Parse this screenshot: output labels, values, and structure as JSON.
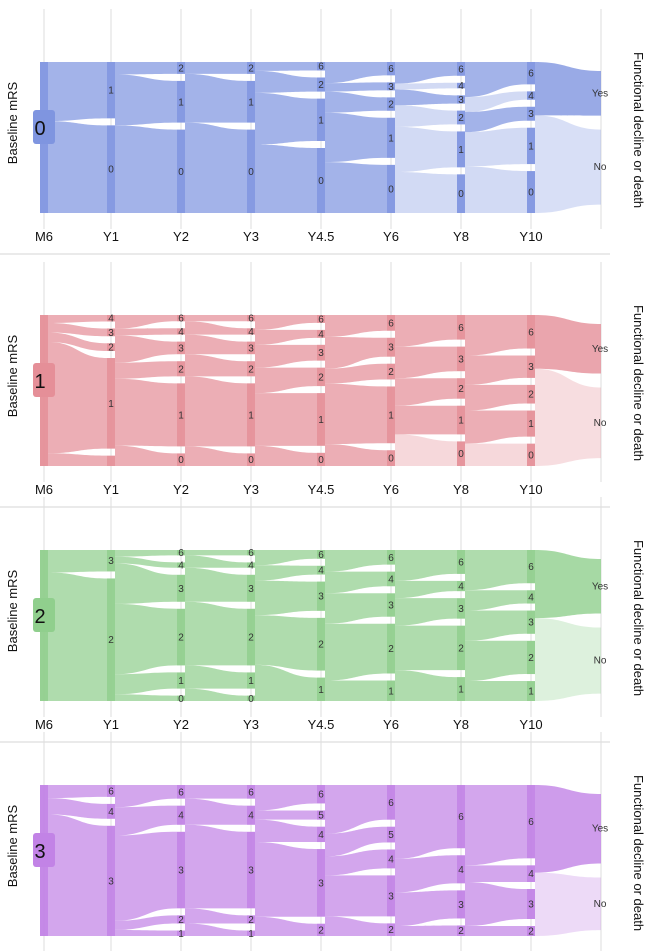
{
  "figure": {
    "y_axis_label": "Baseline mRS",
    "right_label": "Functional decline or death",
    "outcomes": [
      "Yes",
      "No"
    ]
  },
  "chart_data": [
    {
      "type": "sankey",
      "baseline": "0",
      "color": "#7f95e0",
      "timepoints": [
        "M6",
        "Y1",
        "Y2",
        "Y3",
        "Y4.5",
        "Y6",
        "Y8",
        "Y10"
      ],
      "ylabel": "Baseline mRS",
      "nodes": [
        {
          "time": "M6",
          "states": [
            {
              "label": "",
              "share": 1.0
            }
          ]
        },
        {
          "time": "Y1",
          "states": [
            {
              "label": "1",
              "share": 0.36
            },
            {
              "label": "0",
              "share": 0.56
            }
          ]
        },
        {
          "time": "Y2",
          "states": [
            {
              "label": "2",
              "share": 0.08
            },
            {
              "label": "1",
              "share": 0.28
            },
            {
              "label": "0",
              "share": 0.56
            }
          ]
        },
        {
          "time": "Y3",
          "states": [
            {
              "label": "2",
              "share": 0.08
            },
            {
              "label": "1",
              "share": 0.28
            },
            {
              "label": "0",
              "share": 0.56
            }
          ]
        },
        {
          "time": "Y4.5",
          "states": [
            {
              "label": "6",
              "share": 0.06
            },
            {
              "label": "2",
              "share": 0.1
            },
            {
              "label": "1",
              "share": 0.3
            },
            {
              "label": "0",
              "share": 0.46
            }
          ]
        },
        {
          "time": "Y6",
          "states": [
            {
              "label": "6",
              "share": 0.1
            },
            {
              "label": "3",
              "share": 0.06
            },
            {
              "label": "2",
              "share": 0.1
            },
            {
              "label": "1",
              "share": 0.3
            },
            {
              "label": "0",
              "share": 0.36
            }
          ]
        },
        {
          "time": "Y8",
          "states": [
            {
              "label": "6",
              "share": 0.1
            },
            {
              "label": "4",
              "share": 0.04
            },
            {
              "label": "3",
              "share": 0.06
            },
            {
              "label": "2",
              "share": 0.1
            },
            {
              "label": "1",
              "share": 0.26
            },
            {
              "label": "0",
              "share": 0.28
            }
          ]
        },
        {
          "time": "Y10",
          "states": [
            {
              "label": "6",
              "share": 0.16
            },
            {
              "label": "4",
              "share": 0.06
            },
            {
              "label": "3",
              "share": 0.1
            },
            {
              "label": "1",
              "share": 0.26
            },
            {
              "label": "0",
              "share": 0.3
            }
          ]
        }
      ],
      "outcome_share": {
        "Yes": 0.32,
        "No": 0.68
      }
    },
    {
      "type": "sankey",
      "baseline": "1",
      "color": "#e58f98",
      "timepoints": [
        "M6",
        "Y1",
        "Y2",
        "Y3",
        "Y4.5",
        "Y6",
        "Y8",
        "Y10"
      ],
      "ylabel": "Baseline mRS",
      "nodes": [
        {
          "time": "M6",
          "states": [
            {
              "label": "",
              "share": 1.0
            }
          ]
        },
        {
          "time": "Y1",
          "states": [
            {
              "label": "4",
              "share": 0.05
            },
            {
              "label": "3",
              "share": 0.06
            },
            {
              "label": "2",
              "share": 0.06
            },
            {
              "label": "1",
              "share": 0.7
            },
            {
              "label": "",
              "share": 0.08
            }
          ]
        },
        {
          "time": "Y2",
          "states": [
            {
              "label": "6",
              "share": 0.05
            },
            {
              "label": "4",
              "share": 0.05
            },
            {
              "label": "3",
              "share": 0.1
            },
            {
              "label": "2",
              "share": 0.12
            },
            {
              "label": "1",
              "share": 0.5
            },
            {
              "label": "0",
              "share": 0.1
            }
          ]
        },
        {
          "time": "Y3",
          "states": [
            {
              "label": "6",
              "share": 0.05
            },
            {
              "label": "4",
              "share": 0.05
            },
            {
              "label": "3",
              "share": 0.1
            },
            {
              "label": "2",
              "share": 0.12
            },
            {
              "label": "1",
              "share": 0.5
            },
            {
              "label": "0",
              "share": 0.1
            }
          ]
        },
        {
          "time": "Y4.5",
          "states": [
            {
              "label": "6",
              "share": 0.06
            },
            {
              "label": "4",
              "share": 0.06
            },
            {
              "label": "3",
              "share": 0.12
            },
            {
              "label": "2",
              "share": 0.14
            },
            {
              "label": "1",
              "share": 0.4
            },
            {
              "label": "0",
              "share": 0.1
            }
          ]
        },
        {
          "time": "Y6",
          "states": [
            {
              "label": "6",
              "share": 0.1
            },
            {
              "label": "3",
              "share": 0.12
            },
            {
              "label": "2",
              "share": 0.1
            },
            {
              "label": "1",
              "share": 0.36
            },
            {
              "label": "0",
              "share": 0.1
            }
          ]
        },
        {
          "time": "Y8",
          "states": [
            {
              "label": "6",
              "share": 0.12
            },
            {
              "label": "3",
              "share": 0.12
            },
            {
              "label": "2",
              "share": 0.1
            },
            {
              "label": "1",
              "share": 0.14
            },
            {
              "label": "0",
              "share": 0.12
            }
          ]
        },
        {
          "time": "Y10",
          "states": [
            {
              "label": "6",
              "share": 0.18
            },
            {
              "label": "3",
              "share": 0.12
            },
            {
              "label": "2",
              "share": 0.1
            },
            {
              "label": "1",
              "share": 0.14
            },
            {
              "label": "0",
              "share": 0.12
            }
          ]
        }
      ],
      "outcome_share": {
        "Yes": 0.38,
        "No": 0.62
      }
    },
    {
      "type": "sankey",
      "baseline": "2",
      "color": "#90cf8d",
      "timepoints": [
        "M6",
        "Y1",
        "Y2",
        "Y3",
        "Y4.5",
        "Y6",
        "Y8",
        "Y10"
      ],
      "ylabel": "Baseline mRS",
      "nodes": [
        {
          "time": "M6",
          "states": [
            {
              "label": "",
              "share": 1.0
            }
          ]
        },
        {
          "time": "Y1",
          "states": [
            {
              "label": "3",
              "share": 0.14
            },
            {
              "label": "2",
              "share": 0.8
            }
          ]
        },
        {
          "time": "Y2",
          "states": [
            {
              "label": "6",
              "share": 0.04
            },
            {
              "label": "4",
              "share": 0.04
            },
            {
              "label": "3",
              "share": 0.2
            },
            {
              "label": "2",
              "share": 0.42
            },
            {
              "label": "1",
              "share": 0.12
            },
            {
              "label": "0",
              "share": 0.04
            }
          ]
        },
        {
          "time": "Y3",
          "states": [
            {
              "label": "6",
              "share": 0.04
            },
            {
              "label": "4",
              "share": 0.04
            },
            {
              "label": "3",
              "share": 0.2
            },
            {
              "label": "2",
              "share": 0.42
            },
            {
              "label": "1",
              "share": 0.12
            },
            {
              "label": "0",
              "share": 0.04
            }
          ]
        },
        {
          "time": "Y4.5",
          "states": [
            {
              "label": "6",
              "share": 0.06
            },
            {
              "label": "4",
              "share": 0.06
            },
            {
              "label": "3",
              "share": 0.2
            },
            {
              "label": "2",
              "share": 0.36
            },
            {
              "label": "1",
              "share": 0.16
            }
          ]
        },
        {
          "time": "Y6",
          "states": [
            {
              "label": "6",
              "share": 0.1
            },
            {
              "label": "4",
              "share": 0.1
            },
            {
              "label": "3",
              "share": 0.16
            },
            {
              "label": "2",
              "share": 0.34
            },
            {
              "label": "1",
              "share": 0.14
            }
          ]
        },
        {
          "time": "Y8",
          "states": [
            {
              "label": "6",
              "share": 0.14
            },
            {
              "label": "4",
              "share": 0.06
            },
            {
              "label": "3",
              "share": 0.12
            },
            {
              "label": "2",
              "share": 0.26
            },
            {
              "label": "1",
              "share": 0.14
            }
          ]
        },
        {
          "time": "Y10",
          "states": [
            {
              "label": "6",
              "share": 0.2
            },
            {
              "label": "4",
              "share": 0.08
            },
            {
              "label": "3",
              "share": 0.14
            },
            {
              "label": "2",
              "share": 0.2
            },
            {
              "label": "1",
              "share": 0.12
            }
          ]
        }
      ],
      "outcome_share": {
        "Yes": 0.44,
        "No": 0.56
      }
    },
    {
      "type": "sankey",
      "baseline": "3",
      "color": "#c283e6",
      "timepoints": [
        "M6",
        "Y1",
        "Y2",
        "Y3",
        "Y4.5",
        "Y6",
        "Y8",
        "Y10"
      ],
      "ylabel": "Baseline mRS",
      "nodes": [
        {
          "time": "M6",
          "states": [
            {
              "label": "",
              "share": 1.0
            }
          ]
        },
        {
          "time": "Y1",
          "states": [
            {
              "label": "6",
              "share": 0.08
            },
            {
              "label": "4",
              "share": 0.1
            },
            {
              "label": "3",
              "share": 0.74
            }
          ]
        },
        {
          "time": "Y2",
          "states": [
            {
              "label": "6",
              "share": 0.1
            },
            {
              "label": "4",
              "share": 0.14
            },
            {
              "label": "3",
              "share": 0.56
            },
            {
              "label": "2",
              "share": 0.06
            },
            {
              "label": "1",
              "share": 0.04
            }
          ]
        },
        {
          "time": "Y3",
          "states": [
            {
              "label": "6",
              "share": 0.1
            },
            {
              "label": "4",
              "share": 0.14
            },
            {
              "label": "3",
              "share": 0.56
            },
            {
              "label": "2",
              "share": 0.06
            },
            {
              "label": "1",
              "share": 0.04
            }
          ]
        },
        {
          "time": "Y4.5",
          "states": [
            {
              "label": "6",
              "share": 0.12
            },
            {
              "label": "5",
              "share": 0.06
            },
            {
              "label": "4",
              "share": 0.1
            },
            {
              "label": "3",
              "share": 0.44
            },
            {
              "label": "2",
              "share": 0.08
            }
          ]
        },
        {
          "time": "Y6",
          "states": [
            {
              "label": "6",
              "share": 0.22
            },
            {
              "label": "5",
              "share": 0.1
            },
            {
              "label": "4",
              "share": 0.12
            },
            {
              "label": "3",
              "share": 0.26
            },
            {
              "label": "2",
              "share": 0.08
            }
          ]
        },
        {
          "time": "Y8",
          "states": [
            {
              "label": "6",
              "share": 0.36
            },
            {
              "label": "4",
              "share": 0.16
            },
            {
              "label": "3",
              "share": 0.16
            },
            {
              "label": "2",
              "share": 0.06
            }
          ]
        },
        {
          "time": "Y10",
          "states": [
            {
              "label": "6",
              "share": 0.44
            },
            {
              "label": "4",
              "share": 0.1
            },
            {
              "label": "3",
              "share": 0.18
            },
            {
              "label": "2",
              "share": 0.06
            }
          ]
        }
      ],
      "outcome_share": {
        "Yes": 0.62,
        "No": 0.38
      }
    }
  ]
}
